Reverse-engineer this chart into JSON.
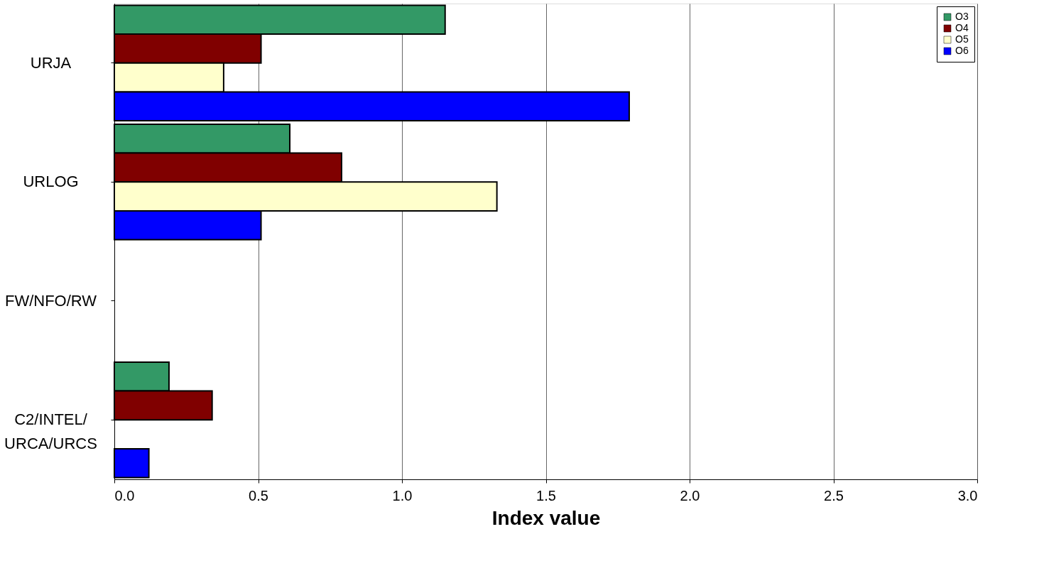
{
  "chart_data": {
    "type": "bar",
    "orientation": "horizontal",
    "xlabel": "Index value",
    "categories": [
      "URJA",
      "URLOG",
      "FW/NFO/RW",
      "C2/INTEL/\nURCA/URCS"
    ],
    "series": [
      {
        "name": "O3",
        "color": "#339966",
        "values": [
          1.15,
          0.61,
          null,
          0.19
        ]
      },
      {
        "name": "O4",
        "color": "#800000",
        "values": [
          0.51,
          0.79,
          null,
          0.34
        ]
      },
      {
        "name": "O5",
        "color": "#ffffcc",
        "values": [
          0.38,
          1.33,
          null,
          null
        ]
      },
      {
        "name": "O6",
        "color": "#0000ff",
        "values": [
          1.79,
          0.51,
          null,
          0.12
        ]
      }
    ],
    "xlim": [
      0,
      3
    ],
    "xticks": [
      {
        "value": 0,
        "label": "0.0"
      },
      {
        "value": 0.5,
        "label": "0.5"
      },
      {
        "value": 1,
        "label": "1.0"
      },
      {
        "value": 1.5,
        "label": "1.5"
      },
      {
        "value": 2,
        "label": "2.0"
      },
      {
        "value": 2.5,
        "label": "2.5"
      },
      {
        "value": 3,
        "label": "3.0"
      }
    ],
    "grid": "x",
    "legend": "top right"
  }
}
